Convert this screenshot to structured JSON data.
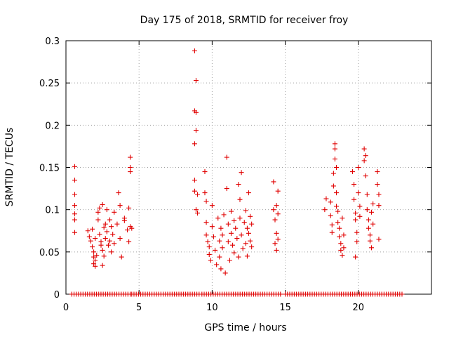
{
  "chart_data": {
    "type": "scatter",
    "title": "Day 175 of 2018, SRMTID for receiver froy",
    "xlabel": "GPS time / hours",
    "ylabel": "SRMTID / TECUs",
    "xlim": [
      0,
      25
    ],
    "ylim": [
      0,
      0.3
    ],
    "xticks": [
      0,
      5,
      10,
      15,
      20
    ],
    "yticks": [
      0,
      0.05,
      0.1,
      0.15,
      0.2,
      0.25,
      0.3
    ],
    "xtick_labels": [
      "0",
      "5",
      "10",
      "15",
      "20"
    ],
    "ytick_labels": [
      "0",
      "0.05",
      "0.1",
      "0.15",
      "0.2",
      "0.25",
      "0.3"
    ],
    "grid": true,
    "marker": "+",
    "color": "#e00000",
    "series": [
      {
        "name": "SRMTID",
        "points": [
          [
            0.6,
            0.151
          ],
          [
            0.6,
            0.135
          ],
          [
            0.6,
            0.118
          ],
          [
            0.6,
            0.105
          ],
          [
            0.6,
            0.095
          ],
          [
            0.6,
            0.088
          ],
          [
            0.6,
            0.073
          ],
          [
            1.5,
            0.075
          ],
          [
            1.6,
            0.068
          ],
          [
            1.7,
            0.063
          ],
          [
            1.8,
            0.077
          ],
          [
            1.8,
            0.056
          ],
          [
            1.9,
            0.05
          ],
          [
            1.9,
            0.044
          ],
          [
            1.9,
            0.036
          ],
          [
            2.0,
            0.033
          ],
          [
            2.0,
            0.04
          ],
          [
            2.0,
            0.066
          ],
          [
            2.1,
            0.046
          ],
          [
            2.2,
            0.097
          ],
          [
            2.2,
            0.088
          ],
          [
            2.3,
            0.102
          ],
          [
            2.3,
            0.071
          ],
          [
            2.4,
            0.062
          ],
          [
            2.4,
            0.058
          ],
          [
            2.5,
            0.106
          ],
          [
            2.5,
            0.052
          ],
          [
            2.5,
            0.034
          ],
          [
            2.6,
            0.079
          ],
          [
            2.6,
            0.045
          ],
          [
            2.7,
            0.083
          ],
          [
            2.7,
            0.066
          ],
          [
            2.8,
            0.1
          ],
          [
            2.8,
            0.074
          ],
          [
            2.9,
            0.058
          ],
          [
            3.0,
            0.088
          ],
          [
            3.0,
            0.063
          ],
          [
            3.1,
            0.08
          ],
          [
            3.1,
            0.05
          ],
          [
            3.2,
            0.071
          ],
          [
            3.3,
            0.097
          ],
          [
            3.3,
            0.06
          ],
          [
            3.5,
            0.083
          ],
          [
            3.6,
            0.12
          ],
          [
            3.7,
            0.105
          ],
          [
            3.7,
            0.066
          ],
          [
            3.8,
            0.044
          ],
          [
            4.0,
            0.09
          ],
          [
            4.0,
            0.087
          ],
          [
            4.2,
            0.076
          ],
          [
            4.3,
            0.062
          ],
          [
            4.3,
            0.102
          ],
          [
            4.4,
            0.162
          ],
          [
            4.4,
            0.15
          ],
          [
            4.4,
            0.145
          ],
          [
            4.4,
            0.08
          ],
          [
            4.5,
            0.078
          ],
          [
            8.8,
            0.288
          ],
          [
            8.9,
            0.253
          ],
          [
            8.8,
            0.217
          ],
          [
            8.9,
            0.215
          ],
          [
            8.9,
            0.194
          ],
          [
            8.8,
            0.178
          ],
          [
            8.8,
            0.135
          ],
          [
            8.8,
            0.122
          ],
          [
            8.9,
            0.1
          ],
          [
            9.0,
            0.118
          ],
          [
            9.0,
            0.096
          ],
          [
            9.5,
            0.145
          ],
          [
            9.5,
            0.12
          ],
          [
            9.6,
            0.11
          ],
          [
            9.6,
            0.085
          ],
          [
            9.6,
            0.07
          ],
          [
            9.7,
            0.062
          ],
          [
            9.8,
            0.056
          ],
          [
            9.8,
            0.047
          ],
          [
            9.9,
            0.04
          ],
          [
            10.0,
            0.105
          ],
          [
            10.0,
            0.08
          ],
          [
            10.1,
            0.068
          ],
          [
            10.2,
            0.052
          ],
          [
            10.3,
            0.035
          ],
          [
            10.4,
            0.09
          ],
          [
            10.5,
            0.063
          ],
          [
            10.5,
            0.044
          ],
          [
            10.6,
            0.078
          ],
          [
            10.6,
            0.03
          ],
          [
            10.7,
            0.07
          ],
          [
            10.7,
            0.055
          ],
          [
            10.8,
            0.094
          ],
          [
            10.9,
            0.025
          ],
          [
            11.0,
            0.162
          ],
          [
            11.0,
            0.125
          ],
          [
            11.1,
            0.083
          ],
          [
            11.1,
            0.062
          ],
          [
            11.2,
            0.04
          ],
          [
            11.3,
            0.098
          ],
          [
            11.3,
            0.072
          ],
          [
            11.4,
            0.058
          ],
          [
            11.5,
            0.087
          ],
          [
            11.5,
            0.049
          ],
          [
            11.6,
            0.078
          ],
          [
            11.7,
            0.066
          ],
          [
            11.8,
            0.13
          ],
          [
            11.8,
            0.044
          ],
          [
            11.9,
            0.112
          ],
          [
            11.9,
            0.09
          ],
          [
            12.0,
            0.144
          ],
          [
            12.0,
            0.07
          ],
          [
            12.1,
            0.054
          ],
          [
            12.2,
            0.085
          ],
          [
            12.3,
            0.099
          ],
          [
            12.3,
            0.06
          ],
          [
            12.4,
            0.078
          ],
          [
            12.4,
            0.045
          ],
          [
            12.5,
            0.12
          ],
          [
            12.5,
            0.072
          ],
          [
            12.6,
            0.092
          ],
          [
            12.6,
            0.063
          ],
          [
            12.7,
            0.083
          ],
          [
            12.7,
            0.056
          ],
          [
            14.2,
            0.133
          ],
          [
            14.2,
            0.1
          ],
          [
            14.3,
            0.088
          ],
          [
            14.3,
            0.06
          ],
          [
            14.4,
            0.105
          ],
          [
            14.4,
            0.072
          ],
          [
            14.4,
            0.052
          ],
          [
            14.5,
            0.122
          ],
          [
            14.5,
            0.095
          ],
          [
            14.5,
            0.065
          ],
          [
            17.7,
            0.1
          ],
          [
            17.8,
            0.113
          ],
          [
            18.1,
            0.109
          ],
          [
            18.1,
            0.093
          ],
          [
            18.2,
            0.082
          ],
          [
            18.2,
            0.073
          ],
          [
            18.3,
            0.128
          ],
          [
            18.3,
            0.143
          ],
          [
            18.4,
            0.178
          ],
          [
            18.4,
            0.172
          ],
          [
            18.4,
            0.16
          ],
          [
            18.5,
            0.15
          ],
          [
            18.5,
            0.12
          ],
          [
            18.5,
            0.104
          ],
          [
            18.6,
            0.098
          ],
          [
            18.6,
            0.085
          ],
          [
            18.7,
            0.078
          ],
          [
            18.7,
            0.068
          ],
          [
            18.8,
            0.06
          ],
          [
            18.8,
            0.052
          ],
          [
            18.9,
            0.046
          ],
          [
            18.9,
            0.09
          ],
          [
            19.0,
            0.07
          ],
          [
            19.0,
            0.055
          ],
          [
            19.6,
            0.145
          ],
          [
            19.7,
            0.13
          ],
          [
            19.7,
            0.112
          ],
          [
            19.8,
            0.096
          ],
          [
            19.8,
            0.088
          ],
          [
            19.9,
            0.073
          ],
          [
            19.9,
            0.062
          ],
          [
            20.0,
            0.15
          ],
          [
            20.0,
            0.12
          ],
          [
            20.1,
            0.104
          ],
          [
            20.1,
            0.092
          ],
          [
            19.8,
            0.044
          ],
          [
            20.4,
            0.172
          ],
          [
            20.4,
            0.158
          ],
          [
            20.5,
            0.164
          ],
          [
            20.5,
            0.14
          ],
          [
            20.6,
            0.118
          ],
          [
            20.6,
            0.1
          ],
          [
            20.7,
            0.088
          ],
          [
            20.7,
            0.078
          ],
          [
            20.8,
            0.07
          ],
          [
            20.8,
            0.063
          ],
          [
            20.9,
            0.055
          ],
          [
            20.9,
            0.097
          ],
          [
            21.0,
            0.107
          ],
          [
            21.0,
            0.083
          ],
          [
            21.3,
            0.145
          ],
          [
            21.3,
            0.13
          ],
          [
            21.4,
            0.118
          ],
          [
            21.4,
            0.105
          ],
          [
            21.4,
            0.065
          ]
        ],
        "zero_run_segments": [
          [
            0.4,
            4.5
          ],
          [
            4.5,
            9.2
          ],
          [
            9.3,
            14.8
          ],
          [
            15.0,
            23.0
          ]
        ]
      }
    ]
  }
}
